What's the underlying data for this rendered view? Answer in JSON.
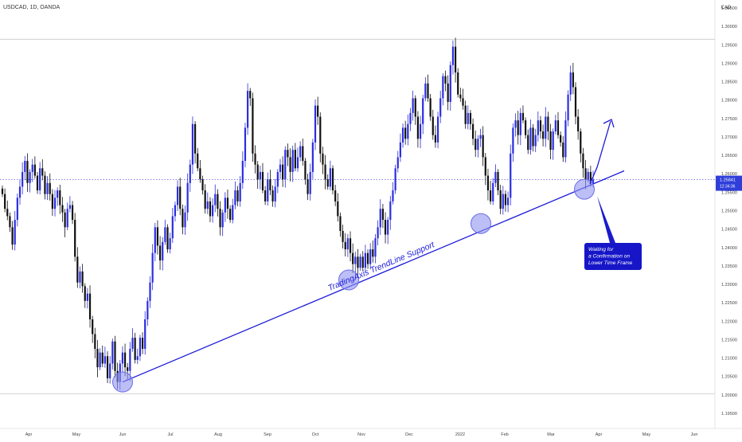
{
  "header": {
    "symbol_title": "USDCAD, 1D, OANDA"
  },
  "axis": {
    "currency": "CAD",
    "y_ticks": [
      "1.30500",
      "1.30000",
      "1.29500",
      "1.29000",
      "1.28500",
      "1.28000",
      "1.27500",
      "1.27000",
      "1.26500",
      "1.26000",
      "1.25500",
      "1.25000",
      "1.24500",
      "1.24000",
      "1.23500",
      "1.23000",
      "1.22500",
      "1.22000",
      "1.21500",
      "1.21000",
      "1.20500",
      "1.20000",
      "1.19500"
    ],
    "x_ticks": [
      "Apr",
      "May",
      "Jun",
      "Jul",
      "Aug",
      "Sep",
      "Oct",
      "Nov",
      "Dec",
      "2022",
      "Feb",
      "Mar",
      "Apr",
      "May",
      "Jun"
    ]
  },
  "price_label": {
    "price": "1.25841",
    "countdown": "12:34:36"
  },
  "annotations": {
    "trendline_label": "TradingAxis TrendLine Support",
    "note_lines": [
      "Waiting for",
      "a Confirmation on",
      "Lower Time Frame"
    ]
  },
  "colors": {
    "bull": "#2a2ee0",
    "bear": "#111111",
    "trendline": "#1c1cd8",
    "circle_fill": "#8f93f0",
    "note_bg": "#1616c8",
    "price_tag": "#2f3ed9"
  },
  "chart_data": {
    "type": "candlestick",
    "title": "USDCAD, 1D, OANDA",
    "ylabel": "CAD",
    "ylim": [
      1.193,
      1.308
    ],
    "current_price": 1.25841,
    "horizontal_levels": [
      1.2965,
      1.2003
    ],
    "trendline": {
      "from": [
        "Jun",
        1.2035
      ],
      "to": [
        "late Mar (extended)",
        1.2608
      ]
    },
    "touch_circles": [
      [
        "Jun",
        1.2035
      ],
      [
        "Oct/Nov",
        1.2312
      ],
      [
        "Jan 2022",
        1.2465
      ],
      [
        "late Mar",
        1.2558
      ]
    ],
    "closes_approx": [
      1.2545,
      1.2505,
      1.2485,
      1.2455,
      1.2408,
      1.2475,
      1.2535,
      1.2565,
      1.2605,
      1.2635,
      1.2575,
      1.2605,
      1.2625,
      1.2595,
      1.2555,
      1.2615,
      1.2595,
      1.2545,
      1.2575,
      1.2545,
      1.2505,
      1.2535,
      1.2555,
      1.2515,
      1.2495,
      1.2455,
      1.2505,
      1.2515,
      1.2475,
      1.2375,
      1.2305,
      1.2335,
      1.2295,
      1.2255,
      1.2275,
      1.2205,
      1.2165,
      1.2125,
      1.2075,
      1.2115,
      1.2085,
      1.2105,
      1.2045,
      1.2085,
      1.2145,
      1.2065,
      1.2035,
      1.2085,
      1.2115,
      1.2075,
      1.2065,
      1.2125,
      1.2155,
      1.2095,
      1.2105,
      1.2155,
      1.2125,
      1.2205,
      1.2255,
      1.2305,
      1.2385,
      1.2455,
      1.2405,
      1.2365,
      1.2415,
      1.2455,
      1.2395,
      1.2425,
      1.2485,
      1.2515,
      1.2565,
      1.2505,
      1.2455,
      1.2495,
      1.2575,
      1.2625,
      1.2735,
      1.2655,
      1.2615,
      1.2585,
      1.2555,
      1.2505,
      1.2525,
      1.2485,
      1.2515,
      1.2545,
      1.2505,
      1.2455,
      1.2495,
      1.2535,
      1.2505,
      1.2475,
      1.2515,
      1.2555,
      1.2525,
      1.2575,
      1.2635,
      1.2725,
      1.2825,
      1.2805,
      1.2655,
      1.2625,
      1.2585,
      1.2605,
      1.2555,
      1.2525,
      1.2585,
      1.2555,
      1.2525,
      1.2565,
      1.2605,
      1.2625,
      1.2585,
      1.2665,
      1.2645,
      1.2605,
      1.2665,
      1.2615,
      1.2645,
      1.2675,
      1.2635,
      1.2585,
      1.2545,
      1.2605,
      1.2685,
      1.2785,
      1.2755,
      1.2655,
      1.2625,
      1.2585,
      1.2565,
      1.2615,
      1.2555,
      1.2525,
      1.2485,
      1.2445,
      1.2415,
      1.2395,
      1.2425,
      1.2385,
      1.2355,
      1.2375,
      1.2345,
      1.2375,
      1.2345,
      1.2385,
      1.2355,
      1.2395,
      1.2375,
      1.2425,
      1.2455,
      1.2505,
      1.2475,
      1.2435,
      1.2475,
      1.2525,
      1.2555,
      1.2615,
      1.2645,
      1.2685,
      1.2725,
      1.2695,
      1.2735,
      1.2765,
      1.2805,
      1.2755,
      1.2695,
      1.2735,
      1.2805,
      1.2845,
      1.2805,
      1.2755,
      1.2705,
      1.2685,
      1.2755,
      1.2805,
      1.2865,
      1.2845,
      1.2795,
      1.2895,
      1.2945,
      1.2875,
      1.2815,
      1.2805,
      1.2785,
      1.2735,
      1.2765,
      1.2735,
      1.2695,
      1.2665,
      1.2695,
      1.2705,
      1.2645,
      1.2595,
      1.2555,
      1.2525,
      1.2575,
      1.2605,
      1.2555,
      1.2505,
      1.2545,
      1.2515,
      1.2535,
      1.2655,
      1.2725,
      1.2745,
      1.2705,
      1.2765,
      1.2745,
      1.2705,
      1.2665,
      1.2725,
      1.2675,
      1.2705,
      1.2745,
      1.2715,
      1.2695,
      1.2755,
      1.2715,
      1.2665,
      1.2715,
      1.2745,
      1.2705,
      1.2685,
      1.2645,
      1.2745,
      1.2815,
      1.2875,
      1.2835,
      1.2755,
      1.2715,
      1.2655,
      1.2615,
      1.2585,
      1.2605,
      1.2575,
      1.2584
    ]
  }
}
